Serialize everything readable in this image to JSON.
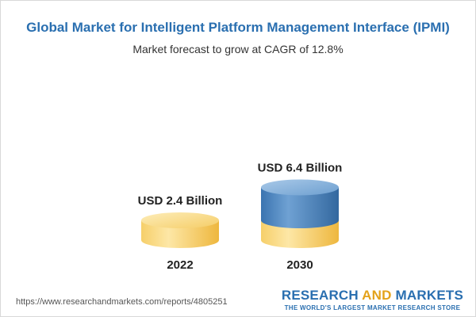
{
  "header": {
    "title": "Global Market for Intelligent Platform Management Interface (IPMI)",
    "subtitle": "Market forecast to grow at CAGR of 12.8%"
  },
  "chart_data": {
    "type": "bar",
    "title": "Global Market for Intelligent Platform Management Interface (IPMI)",
    "subtitle": "Market forecast to grow at CAGR of 12.8%",
    "categories": [
      "2022",
      "2030"
    ],
    "values": [
      2.4,
      6.4
    ],
    "value_labels": [
      "USD 2.4 Billion",
      "USD 6.4 Billion"
    ],
    "unit": "USD Billion",
    "xlabel": "",
    "ylabel": "",
    "grid": false,
    "legend": "none",
    "style": "3d-cylinder",
    "colors": {
      "base": "#f2c050",
      "base_light": "#fae3a0",
      "growth": "#3d78b3",
      "growth_light": "#8cb6de"
    }
  },
  "footer": {
    "source_url": "https://www.researchandmarkets.com/reports/4805251",
    "brand_part1": "RESEARCH ",
    "brand_part2": "AND",
    "brand_part3": " MARKETS",
    "tagline": "THE WORLD'S LARGEST MARKET RESEARCH STORE"
  }
}
